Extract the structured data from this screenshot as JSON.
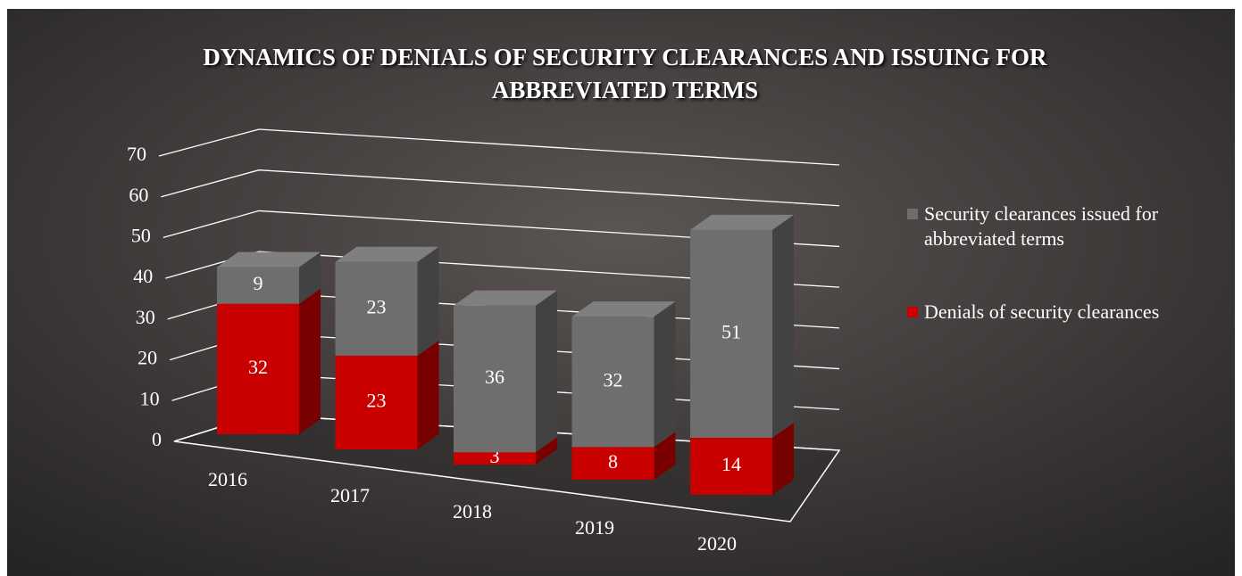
{
  "chart_data": {
    "type": "bar3d_stacked",
    "title": "DYNAMICS OF DENIALS OF SECURITY CLEARANCES AND ISSUING FOR ABBREVIATED TERMS",
    "categories": [
      "2016",
      "2017",
      "2018",
      "2019",
      "2020"
    ],
    "series": [
      {
        "name": "Denials of security clearances",
        "color": "#c80000",
        "values": [
          32,
          23,
          3,
          8,
          14
        ]
      },
      {
        "name": "Security clearances issued for abbreviated terms",
        "color": "#6e6e6e",
        "values": [
          9,
          23,
          36,
          32,
          51
        ]
      }
    ],
    "ylim": [
      0,
      70
    ],
    "yticks": [
      0,
      10,
      20,
      30,
      40,
      50,
      60,
      70
    ],
    "grid": true,
    "legend": "right"
  }
}
